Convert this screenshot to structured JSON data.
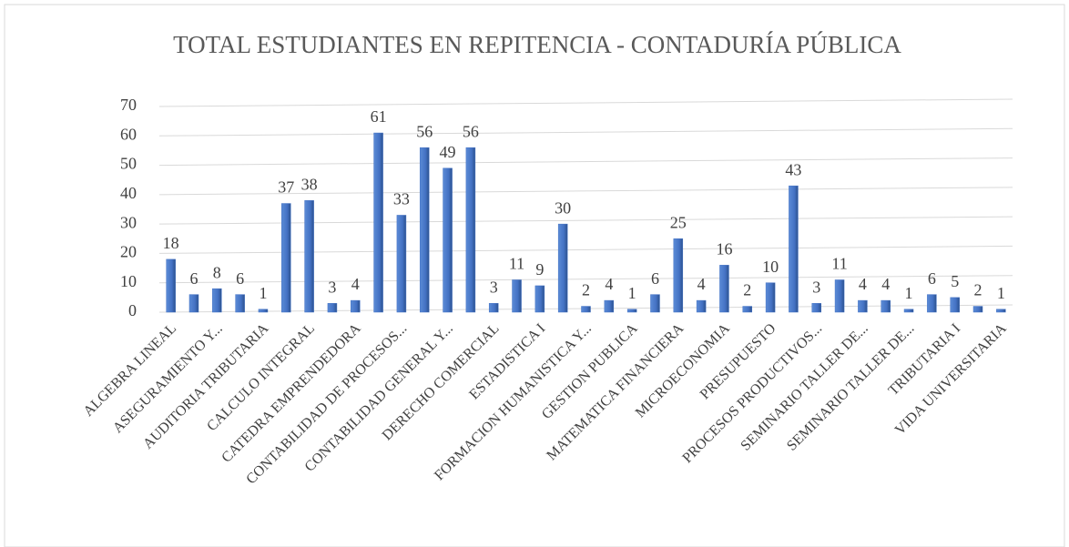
{
  "chart_data": {
    "type": "bar",
    "title": "TOTAL ESTUDIANTES EN REPITENCIA - CONTADURÍA PÚBLICA",
    "categories": [
      "ALGEBRA LINEAL",
      null,
      "ASEGURAMIENTO Y...",
      null,
      "AUDITORIA TRIBUTARIA",
      null,
      "CALCULO INTEGRAL",
      null,
      "CATEDRA EMPRENDEDORA",
      null,
      "CONTABILIDAD DE PROCESOS...",
      null,
      "CONTABILIDAD GENERAL Y...",
      null,
      "DERECHO COMERCIAL",
      null,
      "ESTADISTICA I",
      null,
      "FORMACION HUMANISTICA Y...",
      null,
      "GESTION PUBLICA",
      null,
      "MATEMATICA FINANCIERA",
      null,
      "MICROECONOMIA",
      null,
      "PRESUPUESTO",
      null,
      "PROCESOS PRODUCTIVOS...",
      null,
      "SEMINARIO TALLER DE...",
      null,
      "SEMINARIO TALLER DE...",
      null,
      "TRIBUTARIA I",
      null,
      "VIDA UNIVERSITARIA"
    ],
    "values": [
      18,
      6,
      8,
      6,
      1,
      37,
      38,
      3,
      4,
      61,
      33,
      56,
      49,
      56,
      3,
      11,
      9,
      30,
      2,
      4,
      1,
      6,
      25,
      4,
      16,
      2,
      10,
      43,
      3,
      11,
      4,
      4,
      1,
      6,
      5,
      2,
      1
    ],
    "color": "#4472c4",
    "ylim": [
      0,
      70
    ],
    "yticks": [
      0,
      10,
      20,
      30,
      40,
      50,
      60,
      70
    ],
    "grid": true
  }
}
